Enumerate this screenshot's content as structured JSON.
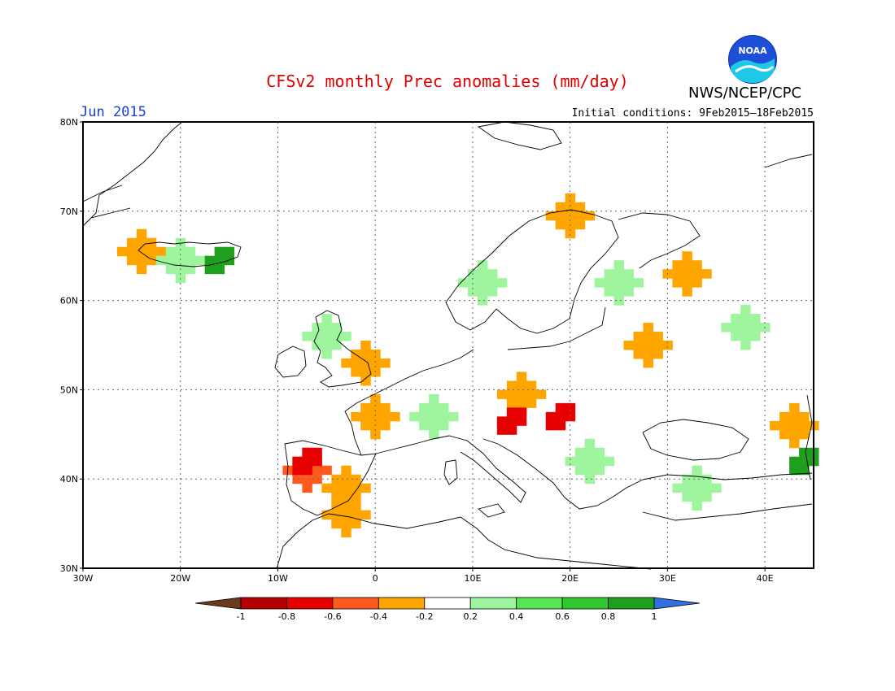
{
  "title": "CFSv2 monthly Prec anomalies (mm/day)",
  "agency": "NWS/NCEP/CPC",
  "logo_text": "NOAA",
  "valid_month": "Jun 2015",
  "initial_conditions": "Initial conditions: 9Feb2015–18Feb2015",
  "map": {
    "lon_range": [
      -30,
      45
    ],
    "lat_range": [
      30,
      80
    ],
    "lat_ticks": [
      {
        "value": 80,
        "label": "80N"
      },
      {
        "value": 70,
        "label": "70N"
      },
      {
        "value": 60,
        "label": "60N"
      },
      {
        "value": 50,
        "label": "50N"
      },
      {
        "value": 40,
        "label": "40N"
      },
      {
        "value": 30,
        "label": "30N"
      }
    ],
    "lon_ticks": [
      {
        "value": -30,
        "label": "30W"
      },
      {
        "value": -20,
        "label": "20W"
      },
      {
        "value": -10,
        "label": "10W"
      },
      {
        "value": 0,
        "label": "0"
      },
      {
        "value": 10,
        "label": "10E"
      },
      {
        "value": 20,
        "label": "20E"
      },
      {
        "value": 30,
        "label": "30E"
      },
      {
        "value": 40,
        "label": "40E"
      }
    ],
    "gridlines": "dotted"
  },
  "colorbar": {
    "levels": [
      "-1",
      "-0.8",
      "-0.6",
      "-0.4",
      "-0.2",
      "0.2",
      "0.4",
      "0.6",
      "0.8",
      "1"
    ],
    "colors": [
      "#6b3a1e",
      "#b40000",
      "#e60000",
      "#ff5a1e",
      "#ffa500",
      "#ffffff",
      "#9ef59e",
      "#55e655",
      "#2ec82e",
      "#1ea01e",
      "#3070e0"
    ]
  },
  "anomalies": {
    "dry_moderate": [
      {
        "lon": -24,
        "lat": 65.5,
        "value": -0.3
      },
      {
        "lon": -7,
        "lat": 41,
        "value": -0.5
      },
      {
        "lon": -3,
        "lat": 39,
        "value": -0.3
      },
      {
        "lon": -3,
        "lat": 36,
        "value": -0.3
      },
      {
        "lon": -1,
        "lat": 53,
        "value": -0.3
      },
      {
        "lon": 0,
        "lat": 47,
        "value": -0.3
      },
      {
        "lon": 20,
        "lat": 69.5,
        "value": -0.3
      },
      {
        "lon": 15,
        "lat": 49.5,
        "value": -0.3
      },
      {
        "lon": 28,
        "lat": 55,
        "value": -0.3
      },
      {
        "lon": 32,
        "lat": 63,
        "value": -0.3
      },
      {
        "lon": 43,
        "lat": 46,
        "value": -0.3
      }
    ],
    "dry_strong": [
      {
        "lon": -7,
        "lat": 42,
        "value": -0.7
      },
      {
        "lon": 14,
        "lat": 46.5,
        "value": -0.7
      },
      {
        "lon": 19,
        "lat": 47,
        "value": -0.6
      }
    ],
    "wet_moderate": [
      {
        "lon": -20,
        "lat": 64.5,
        "value": 0.3
      },
      {
        "lon": 11,
        "lat": 62,
        "value": 0.4
      },
      {
        "lon": 25,
        "lat": 62,
        "value": 0.3
      },
      {
        "lon": 38,
        "lat": 57,
        "value": 0.3
      },
      {
        "lon": 33,
        "lat": 39,
        "value": 0.4
      },
      {
        "lon": 22,
        "lat": 42,
        "value": 0.4
      },
      {
        "lon": 6,
        "lat": 47,
        "value": 0.3
      },
      {
        "lon": -5,
        "lat": 56,
        "value": 0.3
      }
    ],
    "wet_strong": [
      {
        "lon": -16,
        "lat": 64.5,
        "value": 0.9
      },
      {
        "lon": 44,
        "lat": 42,
        "value": 0.9
      }
    ]
  }
}
